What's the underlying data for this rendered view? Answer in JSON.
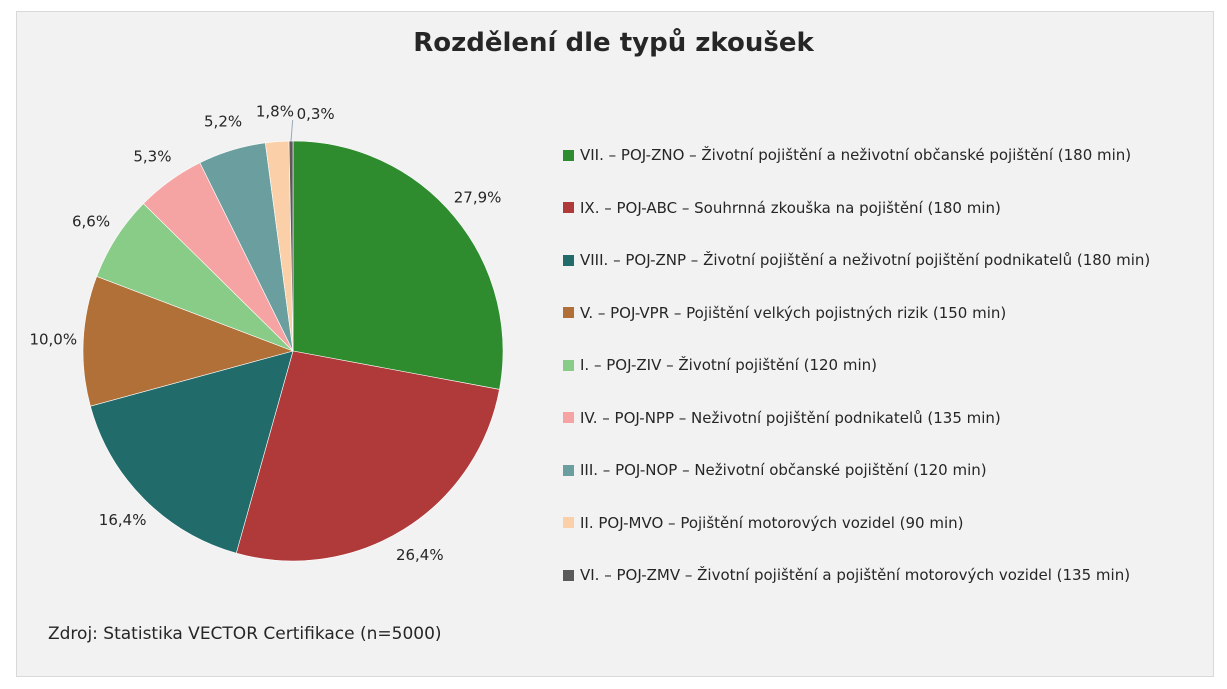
{
  "chart_data": {
    "type": "pie",
    "title": "Rozdělení dle typů zkoušek",
    "source": "Zdroj: Statistika VECTOR Certifikace (n=5000)",
    "legend_position": "right",
    "slices": [
      {
        "label": "VII. – POJ-ZNO – Životní pojištění a neživotní občanské pojištění (180 min)",
        "value": 27.9,
        "display": "27,9%",
        "color": "#2e8b2e"
      },
      {
        "label": "IX. – POJ-ABC – Souhrnná zkouška na pojištění (180 min)",
        "value": 26.4,
        "display": "26,4%",
        "color": "#b03a3a"
      },
      {
        "label": "VIII. – POJ-ZNP – Životní pojištění a neživotní pojištění podnikatelů (180 min)",
        "value": 16.4,
        "display": "16,4%",
        "color": "#226b6b"
      },
      {
        "label": "V. – POJ-VPR – Pojištění velkých pojistných rizik (150 min)",
        "value": 10.0,
        "display": "10,0%",
        "color": "#b07038"
      },
      {
        "label": "I. – POJ-ZIV – Životní pojištění (120 min)",
        "value": 6.6,
        "display": "6,6%",
        "color": "#88cc88"
      },
      {
        "label": "IV. – POJ-NPP – Neživotní pojištění podnikatelů (135 min)",
        "value": 5.3,
        "display": "5,3%",
        "color": "#f5a3a3"
      },
      {
        "label": "III. – POJ-NOP – Neživotní občanské pojištění (120 min)",
        "value": 5.2,
        "display": "5,2%",
        "color": "#6b9e9e"
      },
      {
        "label": "II. POJ-MVO – Pojištění motorových vozidel (90 min)",
        "value": 1.8,
        "display": "1,8%",
        "color": "#fbcfa8"
      },
      {
        "label": "VI. – POJ-ZMV – Životní pojištění a pojištění motorových vozidel (135 min)",
        "value": 0.3,
        "display": "0,3%",
        "color": "#5a5a5a"
      }
    ]
  }
}
